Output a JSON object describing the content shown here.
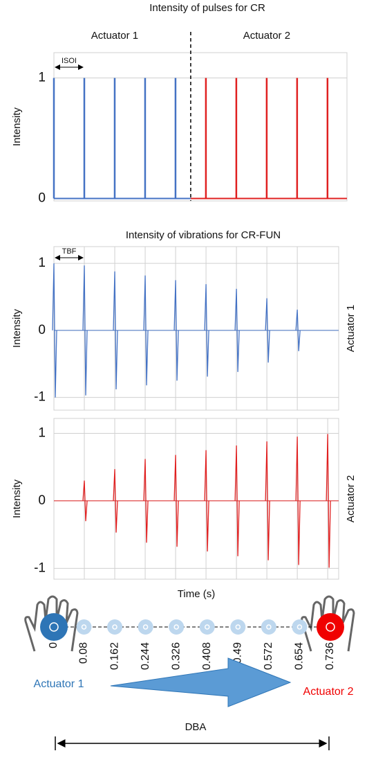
{
  "chart_data": [
    {
      "type": "pulse",
      "title": "Intensity of pulses for CR",
      "y_label": "Intensity",
      "annotation": "ISOI",
      "ylim": [
        -0.02,
        1.21
      ],
      "yticks": [
        0,
        1
      ],
      "xlim": [
        0,
        9.64
      ],
      "series": [
        {
          "name": "Actuator 1",
          "color": "#4472c4",
          "x": [
            0,
            1,
            2,
            3,
            4
          ],
          "values": [
            1,
            1,
            1,
            1,
            1
          ]
        },
        {
          "name": "Actuator 2",
          "color": "#e02020",
          "x": [
            5,
            6,
            7,
            8,
            9
          ],
          "values": [
            1,
            1,
            1,
            1,
            1
          ]
        }
      ]
    },
    {
      "type": "burst",
      "title": "Intensity of vibrations for CR-FUN",
      "y_label": "Intensity",
      "annotation": "TBF",
      "ylim": [
        -1.19,
        1.25
      ],
      "yticks": [
        -1,
        0,
        1
      ],
      "xlim": [
        0,
        9.36
      ],
      "x": [
        0,
        1,
        2,
        3,
        4,
        5,
        6,
        7,
        8
      ],
      "series": [
        {
          "name": "Actuator 1",
          "color": "#4472c4",
          "values": [
            1,
            0.97,
            0.88,
            0.82,
            0.75,
            0.69,
            0.62,
            0.48,
            0.31
          ]
        }
      ]
    },
    {
      "type": "burst",
      "y_label": "Intensity",
      "x_label": "Time (s)",
      "ylim": [
        -1.16,
        1.22
      ],
      "yticks": [
        -1,
        0,
        1
      ],
      "xlim": [
        0,
        9.36
      ],
      "x": [
        1,
        2,
        3,
        4,
        5,
        6,
        7,
        8,
        9
      ],
      "series": [
        {
          "name": "Actuator 2",
          "color": "#e02020",
          "values": [
            0.3,
            0.47,
            0.62,
            0.68,
            0.75,
            0.82,
            0.88,
            0.95,
            0.99
          ]
        }
      ]
    }
  ],
  "diagram": {
    "positions": [
      0,
      0.08,
      0.162,
      0.244,
      0.326,
      0.408,
      0.49,
      0.572,
      0.654,
      0.736
    ],
    "start_label": "Actuator 1",
    "end_label": "Actuator 2",
    "distance_label": "DBA"
  }
}
